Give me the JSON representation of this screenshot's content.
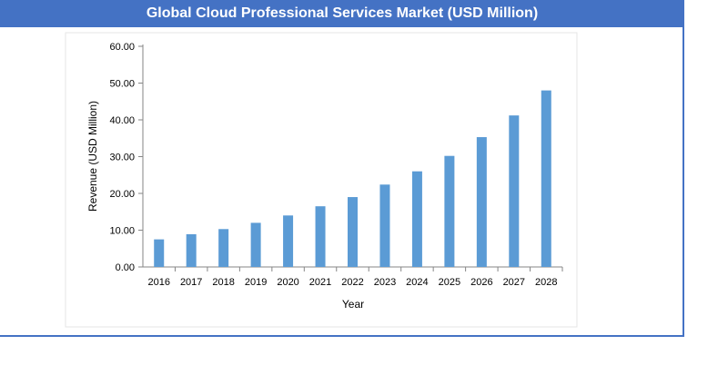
{
  "chart_data": {
    "type": "bar",
    "title": "Global Cloud Professional Services Market (USD Million)",
    "xlabel": "Year",
    "ylabel": "Revenue (USD Million)",
    "ylim": [
      0,
      60
    ],
    "yticks": [
      "0.00",
      "10.00",
      "20.00",
      "30.00",
      "40.00",
      "50.00",
      "60.00"
    ],
    "categories": [
      "2016",
      "2017",
      "2018",
      "2019",
      "2020",
      "2021",
      "2022",
      "2023",
      "2024",
      "2025",
      "2026",
      "2027",
      "2028"
    ],
    "values": [
      7.5,
      8.9,
      10.3,
      12.0,
      14.0,
      16.5,
      19.0,
      22.4,
      26.0,
      30.2,
      35.3,
      41.2,
      48.0
    ],
    "grid": false,
    "bar_color": "#5b9bd5",
    "header_color": "#4472c4"
  }
}
